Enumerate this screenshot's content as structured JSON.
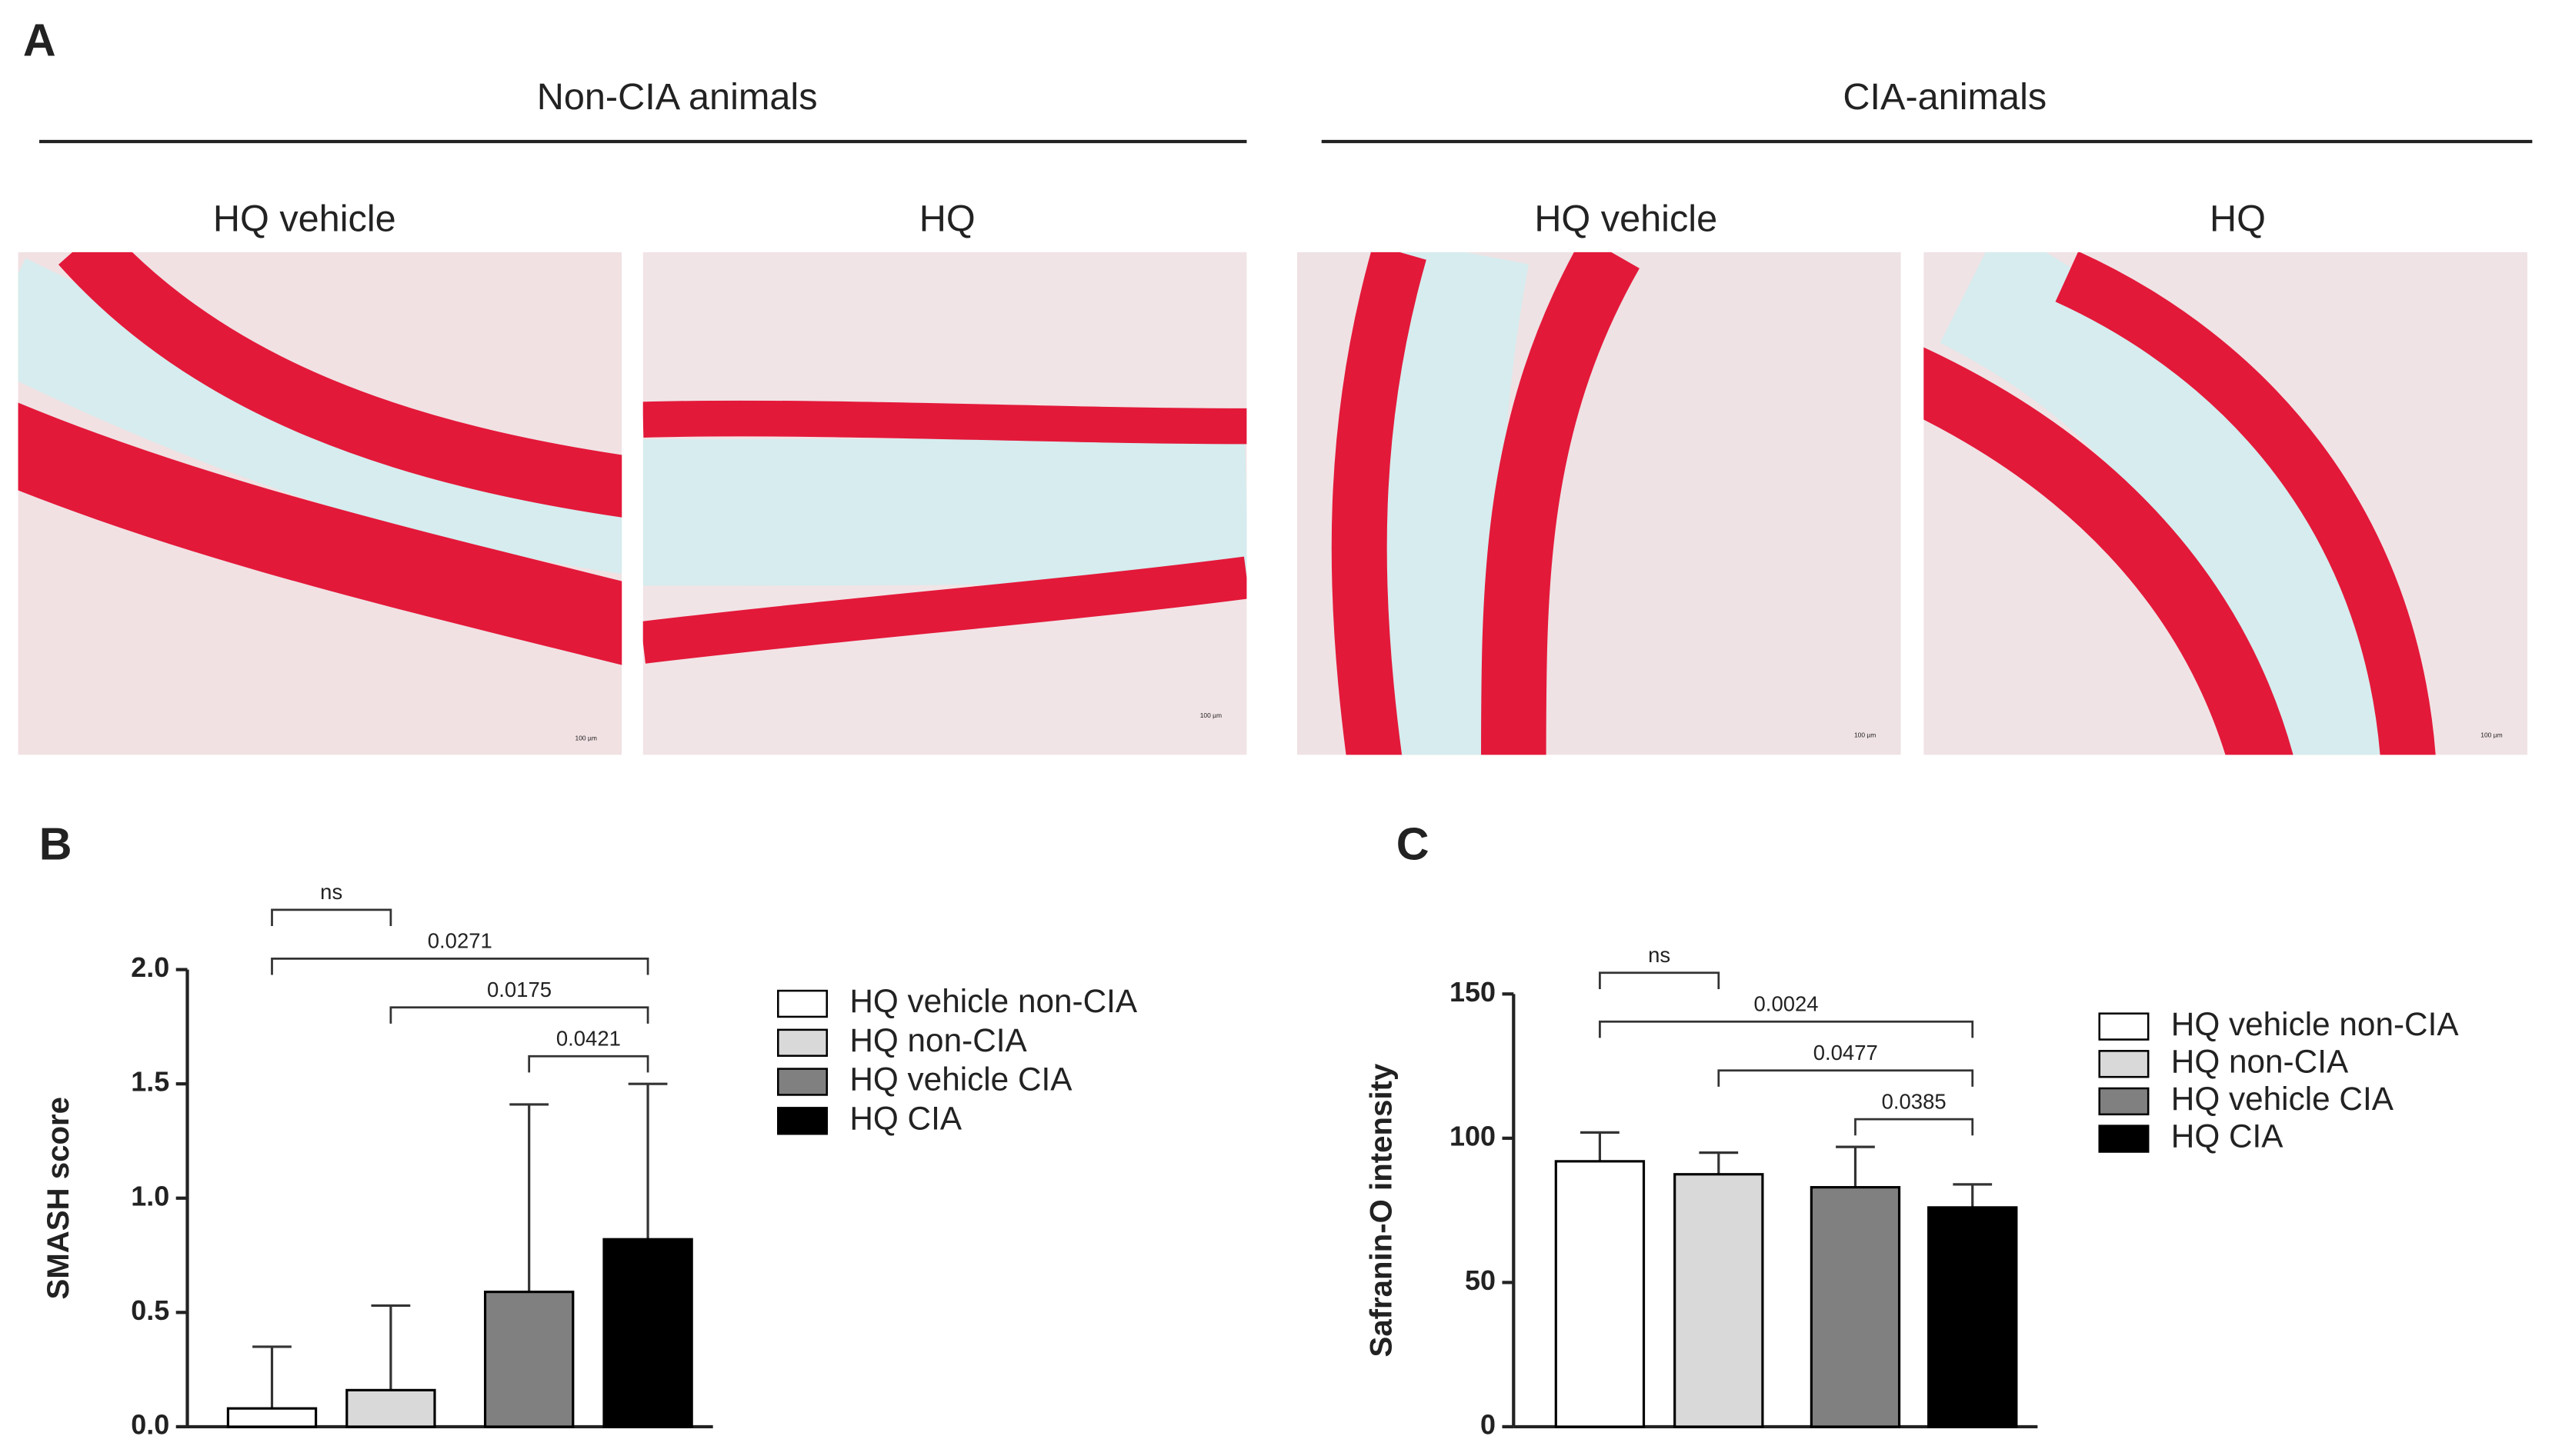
{
  "panel_a": {
    "label": "A",
    "groups": [
      {
        "title": "Non-CIA animals",
        "images": [
          "HQ vehicle",
          "HQ"
        ]
      },
      {
        "title": "CIA-animals",
        "images": [
          "HQ vehicle",
          "HQ"
        ]
      }
    ],
    "scale_bar": "100 µm"
  },
  "chart_data": [
    {
      "type": "bar",
      "panel_label": "B",
      "y_label": "SMASH score",
      "ylim": [
        0,
        2
      ],
      "yticks": [
        {
          "value": 0,
          "label": "0.0"
        },
        0.5,
        {
          "value": 1,
          "label": "1.0"
        },
        1.5,
        {
          "value": 2,
          "label": "2.0"
        }
      ],
      "series": [
        {
          "name": "HQ vehicle non-CIA",
          "color": "#ffffff",
          "values": [
            0.08
          ],
          "errors": [
            0.27
          ]
        },
        {
          "name": "HQ non-CIA",
          "color": "#d9d9d9",
          "values": [
            0.16
          ],
          "errors": [
            0.37
          ]
        },
        {
          "name": "HQ vehicle CIA",
          "color": "#808080",
          "values": [
            0.59
          ],
          "errors": [
            0.82
          ]
        },
        {
          "name": "HQ CIA",
          "color": "#000000",
          "values": [
            0.82
          ],
          "errors": [
            0.68
          ]
        }
      ],
      "comparisons": [
        {
          "pair": [
            2,
            3
          ],
          "label": "0.0421"
        },
        {
          "pair": [
            1,
            3
          ],
          "label": "0.0175"
        },
        {
          "pair": [
            0,
            3
          ],
          "label": "0.0271"
        },
        {
          "pair": [
            0,
            1
          ],
          "label": "ns"
        }
      ]
    },
    {
      "type": "bar",
      "panel_label": "C",
      "y_label": "Safranin-O intensity",
      "ylim": [
        0,
        150
      ],
      "yticks": [
        0,
        50,
        100,
        150
      ],
      "series": [
        {
          "name": "HQ vehicle non-CIA",
          "color": "#ffffff",
          "values": [
            92
          ],
          "errors": [
            10
          ]
        },
        {
          "name": "HQ non-CIA",
          "color": "#d9d9d9",
          "values": [
            87.5
          ],
          "errors": [
            7.5
          ]
        },
        {
          "name": "HQ vehicle CIA",
          "color": "#808080",
          "values": [
            83
          ],
          "errors": [
            14
          ]
        },
        {
          "name": "HQ CIA",
          "color": "#000000",
          "values": [
            76
          ],
          "errors": [
            8
          ]
        }
      ],
      "comparisons": [
        {
          "pair": [
            2,
            3
          ],
          "label": "0.0385"
        },
        {
          "pair": [
            1,
            3
          ],
          "label": "0.0477"
        },
        {
          "pair": [
            0,
            3
          ],
          "label": "0.0024"
        },
        {
          "pair": [
            0,
            1
          ],
          "label": "ns"
        }
      ]
    }
  ]
}
